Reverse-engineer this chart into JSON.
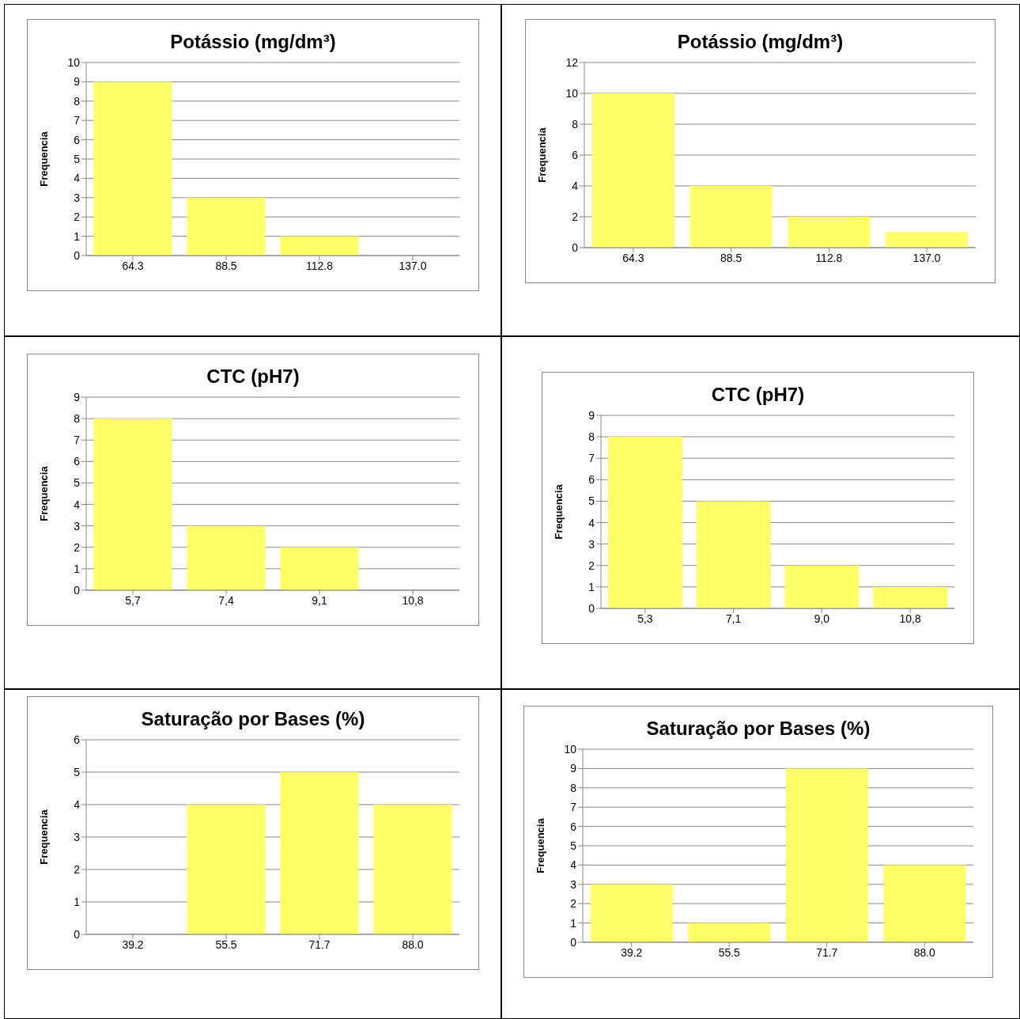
{
  "chart_data": [
    {
      "type": "bar",
      "title": "Potássio (mg/dm³)",
      "ylabel": "Frequencia",
      "categories": [
        "64.3",
        "88.5",
        "112.8",
        "137.0"
      ],
      "values": [
        9,
        3,
        1,
        0
      ],
      "color": "#ffff66",
      "ylim": [
        0,
        10
      ],
      "yticks": [
        0,
        1,
        2,
        3,
        4,
        5,
        6,
        7,
        8,
        9,
        10
      ],
      "grid": "y"
    },
    {
      "type": "bar",
      "title": "Potássio (mg/dm³)",
      "ylabel": "Frequencia",
      "categories": [
        "64.3",
        "88.5",
        "112.8",
        "137.0"
      ],
      "values": [
        10,
        4,
        2,
        1
      ],
      "color": "#ffff66",
      "ylim": [
        0,
        12
      ],
      "yticks": [
        0,
        2,
        4,
        6,
        8,
        10,
        12
      ],
      "grid": "y"
    },
    {
      "type": "bar",
      "title": "CTC (pH7)",
      "ylabel": "Frequencia",
      "categories": [
        "5,7",
        "7,4",
        "9,1",
        "10,8"
      ],
      "values": [
        8,
        3,
        2,
        0
      ],
      "color": "#ffff66",
      "ylim": [
        0,
        9
      ],
      "yticks": [
        0,
        1,
        2,
        3,
        4,
        5,
        6,
        7,
        8,
        9
      ],
      "grid": "y"
    },
    {
      "type": "bar",
      "title": "CTC (pH7)",
      "ylabel": "Frequencia",
      "categories": [
        "5,3",
        "7,1",
        "9,0",
        "10,8"
      ],
      "values": [
        8,
        5,
        2,
        1
      ],
      "color": "#ffff66",
      "ylim": [
        0,
        9
      ],
      "yticks": [
        0,
        1,
        2,
        3,
        4,
        5,
        6,
        7,
        8,
        9
      ],
      "grid": "y"
    },
    {
      "type": "bar",
      "title": "Saturação por Bases (%)",
      "ylabel": "Frequencia",
      "categories": [
        "39.2",
        "55.5",
        "71.7",
        "88.0"
      ],
      "values": [
        0,
        4,
        5,
        4
      ],
      "color": "#ffff66",
      "ylim": [
        0,
        6
      ],
      "yticks": [
        0,
        1,
        2,
        3,
        4,
        5,
        6
      ],
      "grid": "y"
    },
    {
      "type": "bar",
      "title": "Saturação por Bases (%)",
      "ylabel": "Frequencia",
      "categories": [
        "39.2",
        "55.5",
        "71.7",
        "88.0"
      ],
      "values": [
        3,
        1,
        9,
        4
      ],
      "color": "#ffff66",
      "ylim": [
        0,
        10
      ],
      "yticks": [
        0,
        1,
        2,
        3,
        4,
        5,
        6,
        7,
        8,
        9,
        10
      ],
      "grid": "y"
    }
  ]
}
